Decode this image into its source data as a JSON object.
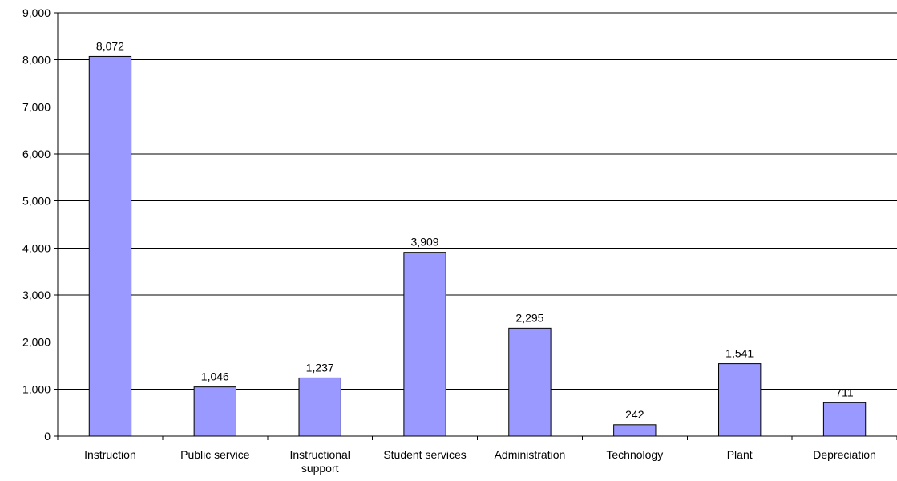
{
  "chart_data": {
    "type": "bar",
    "title": "",
    "xlabel": "",
    "ylabel": "",
    "ylim": [
      0,
      9000
    ],
    "yticks": [
      0,
      1000,
      2000,
      3000,
      4000,
      5000,
      6000,
      7000,
      8000,
      9000
    ],
    "ytick_labels": [
      "0",
      "1,000",
      "2,000",
      "3,000",
      "4,000",
      "5,000",
      "6,000",
      "7,000",
      "8,000",
      "9,000"
    ],
    "categories": [
      [
        "Instruction"
      ],
      [
        "Public service"
      ],
      [
        "Instructional",
        "support"
      ],
      [
        "Student services"
      ],
      [
        "Administration"
      ],
      [
        "Technology"
      ],
      [
        "Plant"
      ],
      [
        "Depreciation"
      ]
    ],
    "values": [
      8072,
      1046,
      1237,
      3909,
      2295,
      242,
      1541,
      711
    ],
    "value_labels": [
      "8,072",
      "1,046",
      "1,237",
      "3,909",
      "2,295",
      "242",
      "1,541",
      "711"
    ],
    "grid": true,
    "legend": "none",
    "colors": {
      "bar_fill": "#9999ff",
      "bar_stroke": "#000000",
      "grid": "#000000"
    }
  }
}
